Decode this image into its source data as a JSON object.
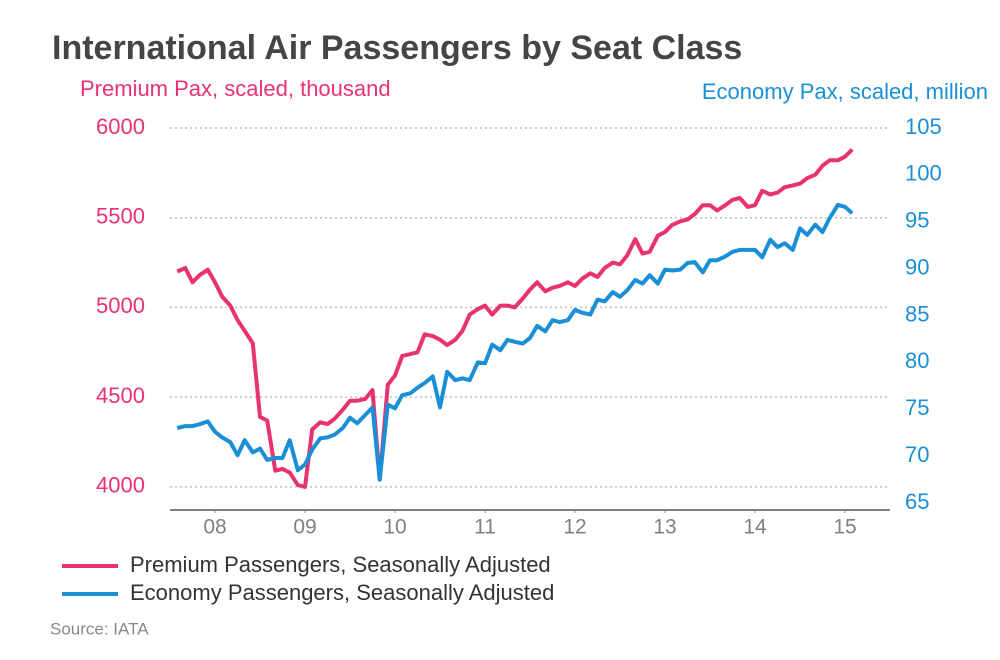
{
  "chart_data": {
    "type": "line",
    "title": "International Air Passengers by Seat Class",
    "ylabel": "Premium Pax, scaled, thousand",
    "y2label": "Economy Pax, scaled, million",
    "source": "Source: IATA",
    "legend": "bottom-left",
    "grid": true,
    "xlim": [
      2008,
      2016
    ],
    "xticks": [
      {
        "value": 2008.5,
        "label": "08"
      },
      {
        "value": 2009.5,
        "label": "09"
      },
      {
        "value": 2010.5,
        "label": "10"
      },
      {
        "value": 2011.5,
        "label": "11"
      },
      {
        "value": 2012.5,
        "label": "12"
      },
      {
        "value": 2013.5,
        "label": "13"
      },
      {
        "value": 2014.5,
        "label": "14"
      },
      {
        "value": 2015.5,
        "label": "15"
      }
    ],
    "ylim": [
      3910,
      6000
    ],
    "yticks": [
      4000,
      4500,
      5000,
      5500,
      6000
    ],
    "y2lim": [
      65,
      105
    ],
    "y2ticks": [
      65,
      70,
      75,
      80,
      85,
      90,
      95,
      100,
      105
    ],
    "x": [
      2008.08,
      2008.17,
      2008.25,
      2008.33,
      2008.42,
      2008.5,
      2008.58,
      2008.67,
      2008.75,
      2008.83,
      2008.92,
      2009,
      2009.08,
      2009.17,
      2009.25,
      2009.33,
      2009.42,
      2009.5,
      2009.58,
      2009.67,
      2009.75,
      2009.83,
      2009.92,
      2010,
      2010.08,
      2010.17,
      2010.25,
      2010.33,
      2010.42,
      2010.5,
      2010.58,
      2010.67,
      2010.75,
      2010.83,
      2010.92,
      2011,
      2011.08,
      2011.17,
      2011.25,
      2011.33,
      2011.42,
      2011.5,
      2011.58,
      2011.67,
      2011.75,
      2011.83,
      2011.92,
      2012,
      2012.08,
      2012.17,
      2012.25,
      2012.33,
      2012.42,
      2012.5,
      2012.58,
      2012.67,
      2012.75,
      2012.83,
      2012.92,
      2013,
      2013.08,
      2013.17,
      2013.25,
      2013.33,
      2013.42,
      2013.5,
      2013.58,
      2013.67,
      2013.75,
      2013.83,
      2013.92,
      2014,
      2014.08,
      2014.17,
      2014.25,
      2014.33,
      2014.42,
      2014.5,
      2014.58,
      2014.67,
      2014.75,
      2014.83,
      2014.92,
      2015,
      2015.08,
      2015.17,
      2015.25,
      2015.33,
      2015.42,
      2015.5,
      2015.58
    ],
    "series": [
      {
        "name": "Premium Passengers, Seasonally Adjusted",
        "color": "#e8336f",
        "values": [
          5200,
          5220,
          5140,
          5180,
          5210,
          5140,
          5060,
          5010,
          4930,
          4870,
          4800,
          4390,
          4370,
          4090,
          4100,
          4080,
          4010,
          4000,
          4320,
          4360,
          4350,
          4380,
          4430,
          4480,
          4480,
          4490,
          4540,
          4040,
          4570,
          4620,
          4730,
          4740,
          4750,
          4850,
          4840,
          4820,
          4790,
          4820,
          4870,
          4960,
          4990,
          5010,
          4960,
          5010,
          5010,
          5000,
          5050,
          5100,
          5140,
          5090,
          5110,
          5120,
          5140,
          5120,
          5160,
          5190,
          5170,
          5220,
          5250,
          5240,
          5290,
          5380,
          5300,
          5310,
          5400,
          5420,
          5460,
          5480,
          5490,
          5520,
          5570,
          5570,
          5540,
          5570,
          5600,
          5610,
          5560,
          5570,
          5650,
          5630,
          5640,
          5670,
          5680,
          5690,
          5720,
          5740,
          5790,
          5820,
          5820,
          5840,
          5880
        ]
      },
      {
        "name": "Economy Passengers, Seasonally Adjusted",
        "color": "#1b8fd6",
        "axis": "y2",
        "values": [
          73.0,
          73.2,
          73.2,
          73.4,
          73.7,
          72.6,
          72.0,
          71.5,
          70.1,
          71.7,
          70.4,
          70.8,
          69.6,
          69.8,
          69.8,
          71.7,
          68.5,
          69.1,
          70.7,
          71.9,
          72.0,
          72.3,
          73.0,
          74.1,
          73.5,
          74.4,
          75.2,
          67.5,
          75.5,
          75.1,
          76.5,
          76.7,
          77.3,
          77.8,
          78.5,
          75.2,
          79.0,
          78.1,
          78.3,
          78.1,
          80.0,
          79.9,
          81.9,
          81.3,
          82.4,
          82.2,
          82.0,
          82.6,
          83.9,
          83.3,
          84.5,
          84.3,
          84.5,
          85.6,
          85.3,
          85.1,
          86.7,
          86.5,
          87.5,
          87.0,
          87.7,
          88.8,
          88.4,
          89.3,
          88.4,
          89.9,
          89.8,
          89.9,
          90.6,
          90.7,
          89.6,
          90.9,
          90.9,
          91.3,
          91.8,
          92.0,
          92.0,
          92.0,
          91.2,
          93.1,
          92.3,
          92.7,
          92.0,
          94.3,
          93.6,
          94.7,
          93.9,
          95.4,
          96.8,
          96.6,
          95.9
        ]
      }
    ]
  }
}
